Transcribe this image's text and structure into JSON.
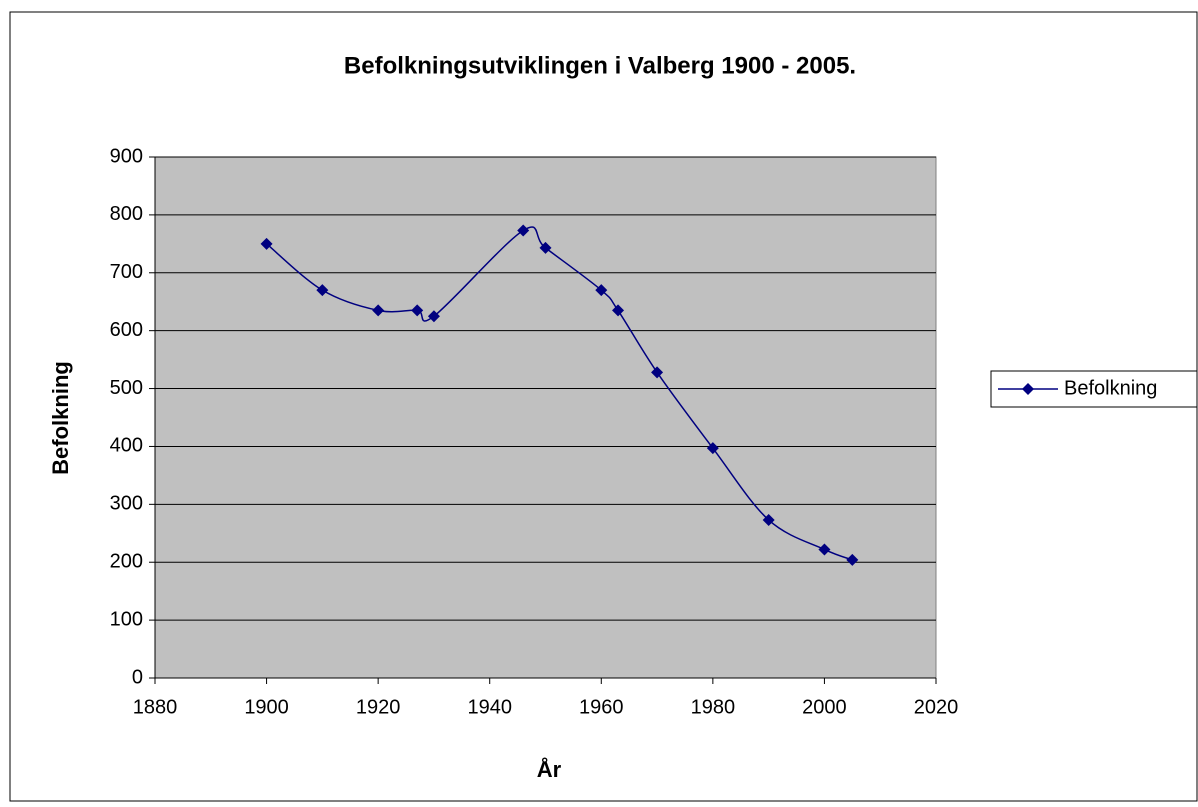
{
  "chart_data": {
    "type": "line",
    "title": "Befolkningsutviklingen i Valberg 1900 - 2005.",
    "x_label": "År",
    "y_label": "Befolkning",
    "x": [
      1900,
      1910,
      1920,
      1927,
      1930,
      1946,
      1950,
      1960,
      1963,
      1970,
      1980,
      1990,
      2000,
      2005
    ],
    "series": [
      {
        "name": "Befolkning",
        "color": "#000080",
        "values": [
          750,
          670,
          635,
          635,
          625,
          773,
          743,
          670,
          635,
          528,
          397,
          273,
          222,
          204
        ]
      }
    ],
    "xlim": [
      1880,
      2020
    ],
    "xticks": [
      1880,
      1900,
      1920,
      1940,
      1960,
      1980,
      2000,
      2020
    ],
    "ylim": [
      0,
      900
    ],
    "yticks": [
      0,
      100,
      200,
      300,
      400,
      500,
      600,
      700,
      800,
      900
    ],
    "grid": true,
    "legend": "right",
    "smooth": true
  }
}
